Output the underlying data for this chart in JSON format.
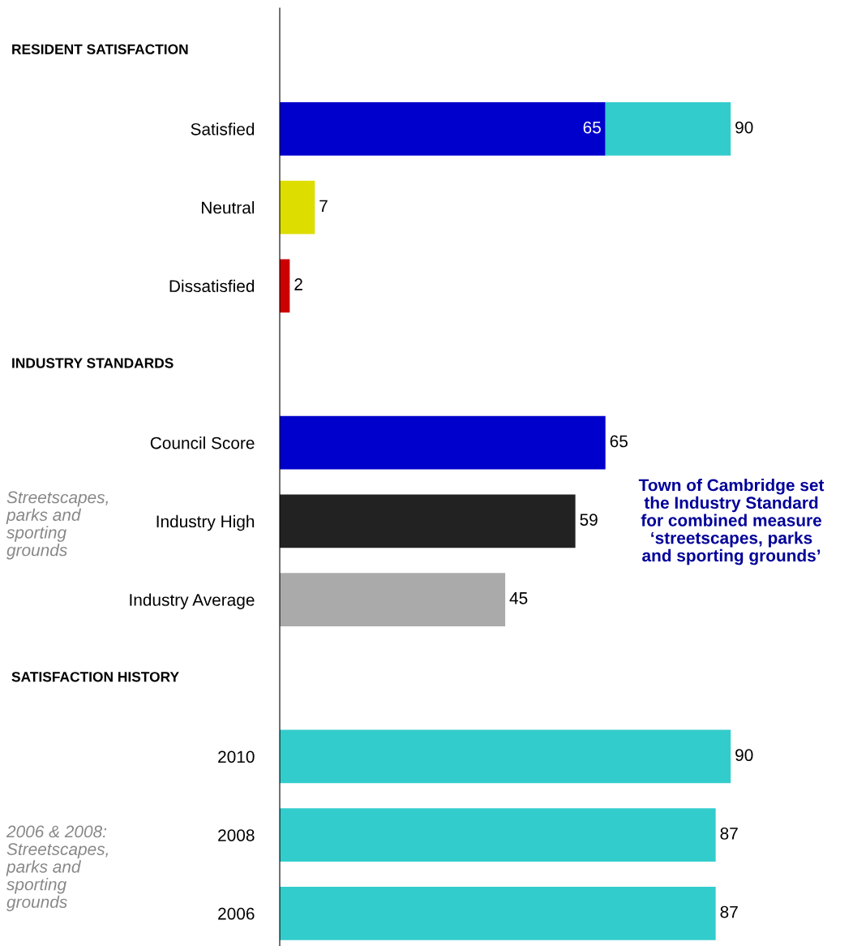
{
  "chart_data": {
    "type": "bar",
    "orientation": "horizontal",
    "stacked": true,
    "tick_labels": "y",
    "legend": false,
    "grid": false,
    "categories": [
      null,
      "Satisfied",
      "Neutral",
      "Dissatisfied",
      null,
      "Council Score",
      "Industry High",
      "Industry Average",
      null,
      "2010",
      "2008",
      "2006"
    ],
    "series": [
      {
        "colors": [
          "#0000cc",
          "#0000cc",
          "#dddd00",
          "#cc0000",
          "#0000cc",
          "#0000cc",
          "#222222",
          "#aaaaaa",
          "#0000cc",
          "#0000cc",
          "#0000cc",
          "#0000cc"
        ],
        "values": [
          null,
          65,
          7,
          2,
          null,
          65,
          59,
          45,
          null,
          null,
          null,
          null
        ],
        "value_labels": [
          null,
          "65",
          "7",
          "2",
          null,
          "65",
          "59",
          "45",
          null,
          null,
          null,
          null
        ]
      },
      {
        "color": "#33cccc",
        "values": [
          null,
          25,
          null,
          null,
          null,
          null,
          null,
          null,
          null,
          90,
          87,
          87
        ],
        "value_labels": [
          null,
          null,
          null,
          null,
          null,
          null,
          null,
          null,
          null,
          "90",
          "87",
          "87"
        ]
      }
    ],
    "totals": [
      null,
      "90",
      null,
      null,
      null,
      null,
      null,
      null,
      null,
      null,
      null,
      null
    ],
    "annotations": [
      "RESIDENT SATISFACTION",
      "INDUSTRY STANDARDS",
      "SATISFACTION HISTORY",
      "Streetscapes, parks and sporting grounds",
      "2006 & 2008: Streetscapes, parks and sporting grounds",
      "Town of Cambridge set the Industry Standard for combined measure ‘streetscapes, parks and sporting grounds’"
    ]
  }
}
